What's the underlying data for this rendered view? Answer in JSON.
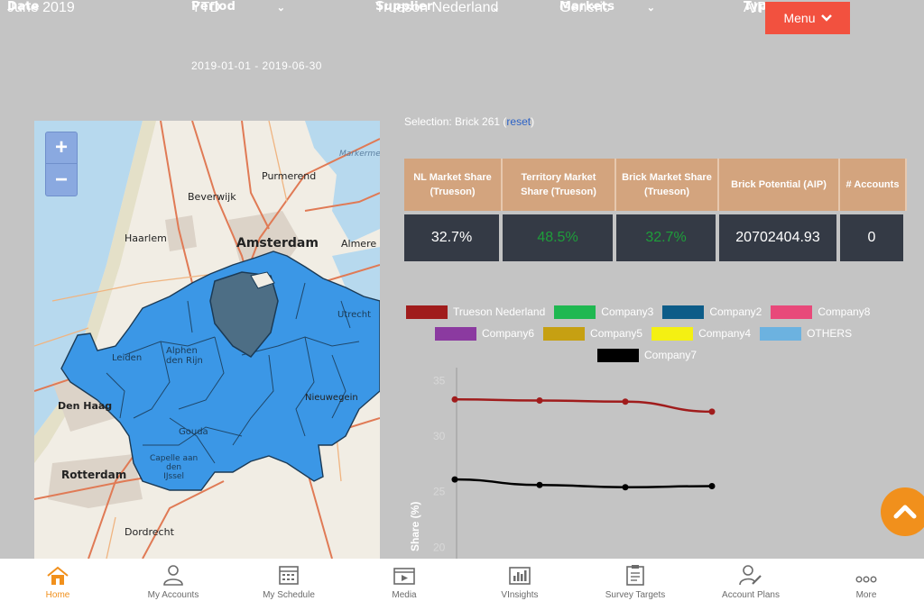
{
  "filters": {
    "date": {
      "label": "Date",
      "value": "June 2019"
    },
    "period": {
      "label": "Period",
      "value": "YTD",
      "range": "2019-01-01 - 2019-06-30"
    },
    "supplier": {
      "label": "Supplier",
      "value": "Trueson Nederland"
    },
    "markets": {
      "label": "Markets",
      "value": "Generic"
    },
    "type": {
      "label": "Typ",
      "value": "AIP"
    }
  },
  "menu_label": "Menu",
  "map": {
    "zoom_in": "+",
    "zoom_out": "−",
    "labels": {
      "purmerend": "Purmerend",
      "beverwijk": "Beverwijk",
      "haarlem": "Haarlem",
      "amsterdam": "Amsterdam",
      "almere": "Almere",
      "markermeer": "Markermeer",
      "alphen": "Alphen\nden Rijn",
      "den_haag": "Den Haag",
      "rotterdam": "Rotterdam",
      "dordrecht": "Dordrecht",
      "gouda": "Gouda",
      "capelle": "Capelle aan\nden\nIJssel",
      "nieuwegein": "Nieuwegein",
      "leiden": "Leiden",
      "utrecht": "Utrecht"
    }
  },
  "selection": {
    "text": "Selection: Brick 261",
    "reset": "reset"
  },
  "kpi": {
    "headers": [
      "NL Market Share (Trueson)",
      "Territory Market Share (Trueson)",
      "Brick Market Share (Trueson)",
      "Brick Potential (AIP)",
      "# Accounts"
    ],
    "values": [
      "32.7%",
      "48.5%",
      "32.7%",
      "20702404.93",
      "0"
    ],
    "value_colors": [
      "#ffffff",
      "#1e9e3a",
      "#1e9e3a",
      "#ffffff",
      "#ffffff"
    ]
  },
  "legend": [
    {
      "name": "Trueson Nederland",
      "color": "#a01c1c"
    },
    {
      "name": "Company3",
      "color": "#1fb851"
    },
    {
      "name": "Company2",
      "color": "#0d5c88"
    },
    {
      "name": "Company8",
      "color": "#e8497a"
    },
    {
      "name": "Company6",
      "color": "#8b3aa0"
    },
    {
      "name": "Company5",
      "color": "#c6a012"
    },
    {
      "name": "Company4",
      "color": "#f4f012"
    },
    {
      "name": "OTHERS",
      "color": "#6cb2e0"
    },
    {
      "name": "Company7",
      "color": "#000000"
    }
  ],
  "chart_data": {
    "type": "line",
    "ylabel": "Share (%)",
    "yticks": [
      "35",
      "30",
      "25",
      "20"
    ],
    "ylim": [
      18,
      36
    ],
    "x": [
      1,
      2,
      3,
      4
    ],
    "series": [
      {
        "name": "Trueson Nederland",
        "color": "#a01c1c",
        "values": [
          33.3,
          33.2,
          33.1,
          32.2
        ]
      },
      {
        "name": "Company7",
        "color": "#000000",
        "values": [
          26.1,
          25.6,
          25.4,
          25.5
        ]
      }
    ]
  },
  "nav": [
    {
      "label": "Home",
      "icon": "home-icon",
      "active": true
    },
    {
      "label": "My Accounts",
      "icon": "accounts-icon",
      "active": false
    },
    {
      "label": "My Schedule",
      "icon": "calendar-icon",
      "active": false
    },
    {
      "label": "Media",
      "icon": "media-icon",
      "active": false
    },
    {
      "label": "VInsights",
      "icon": "chart-icon",
      "active": false
    },
    {
      "label": "Survey Targets",
      "icon": "clipboard-icon",
      "active": false
    },
    {
      "label": "Account Plans",
      "icon": "account-plan-icon",
      "active": false
    },
    {
      "label": "More",
      "icon": "more-icon",
      "active": false
    }
  ]
}
